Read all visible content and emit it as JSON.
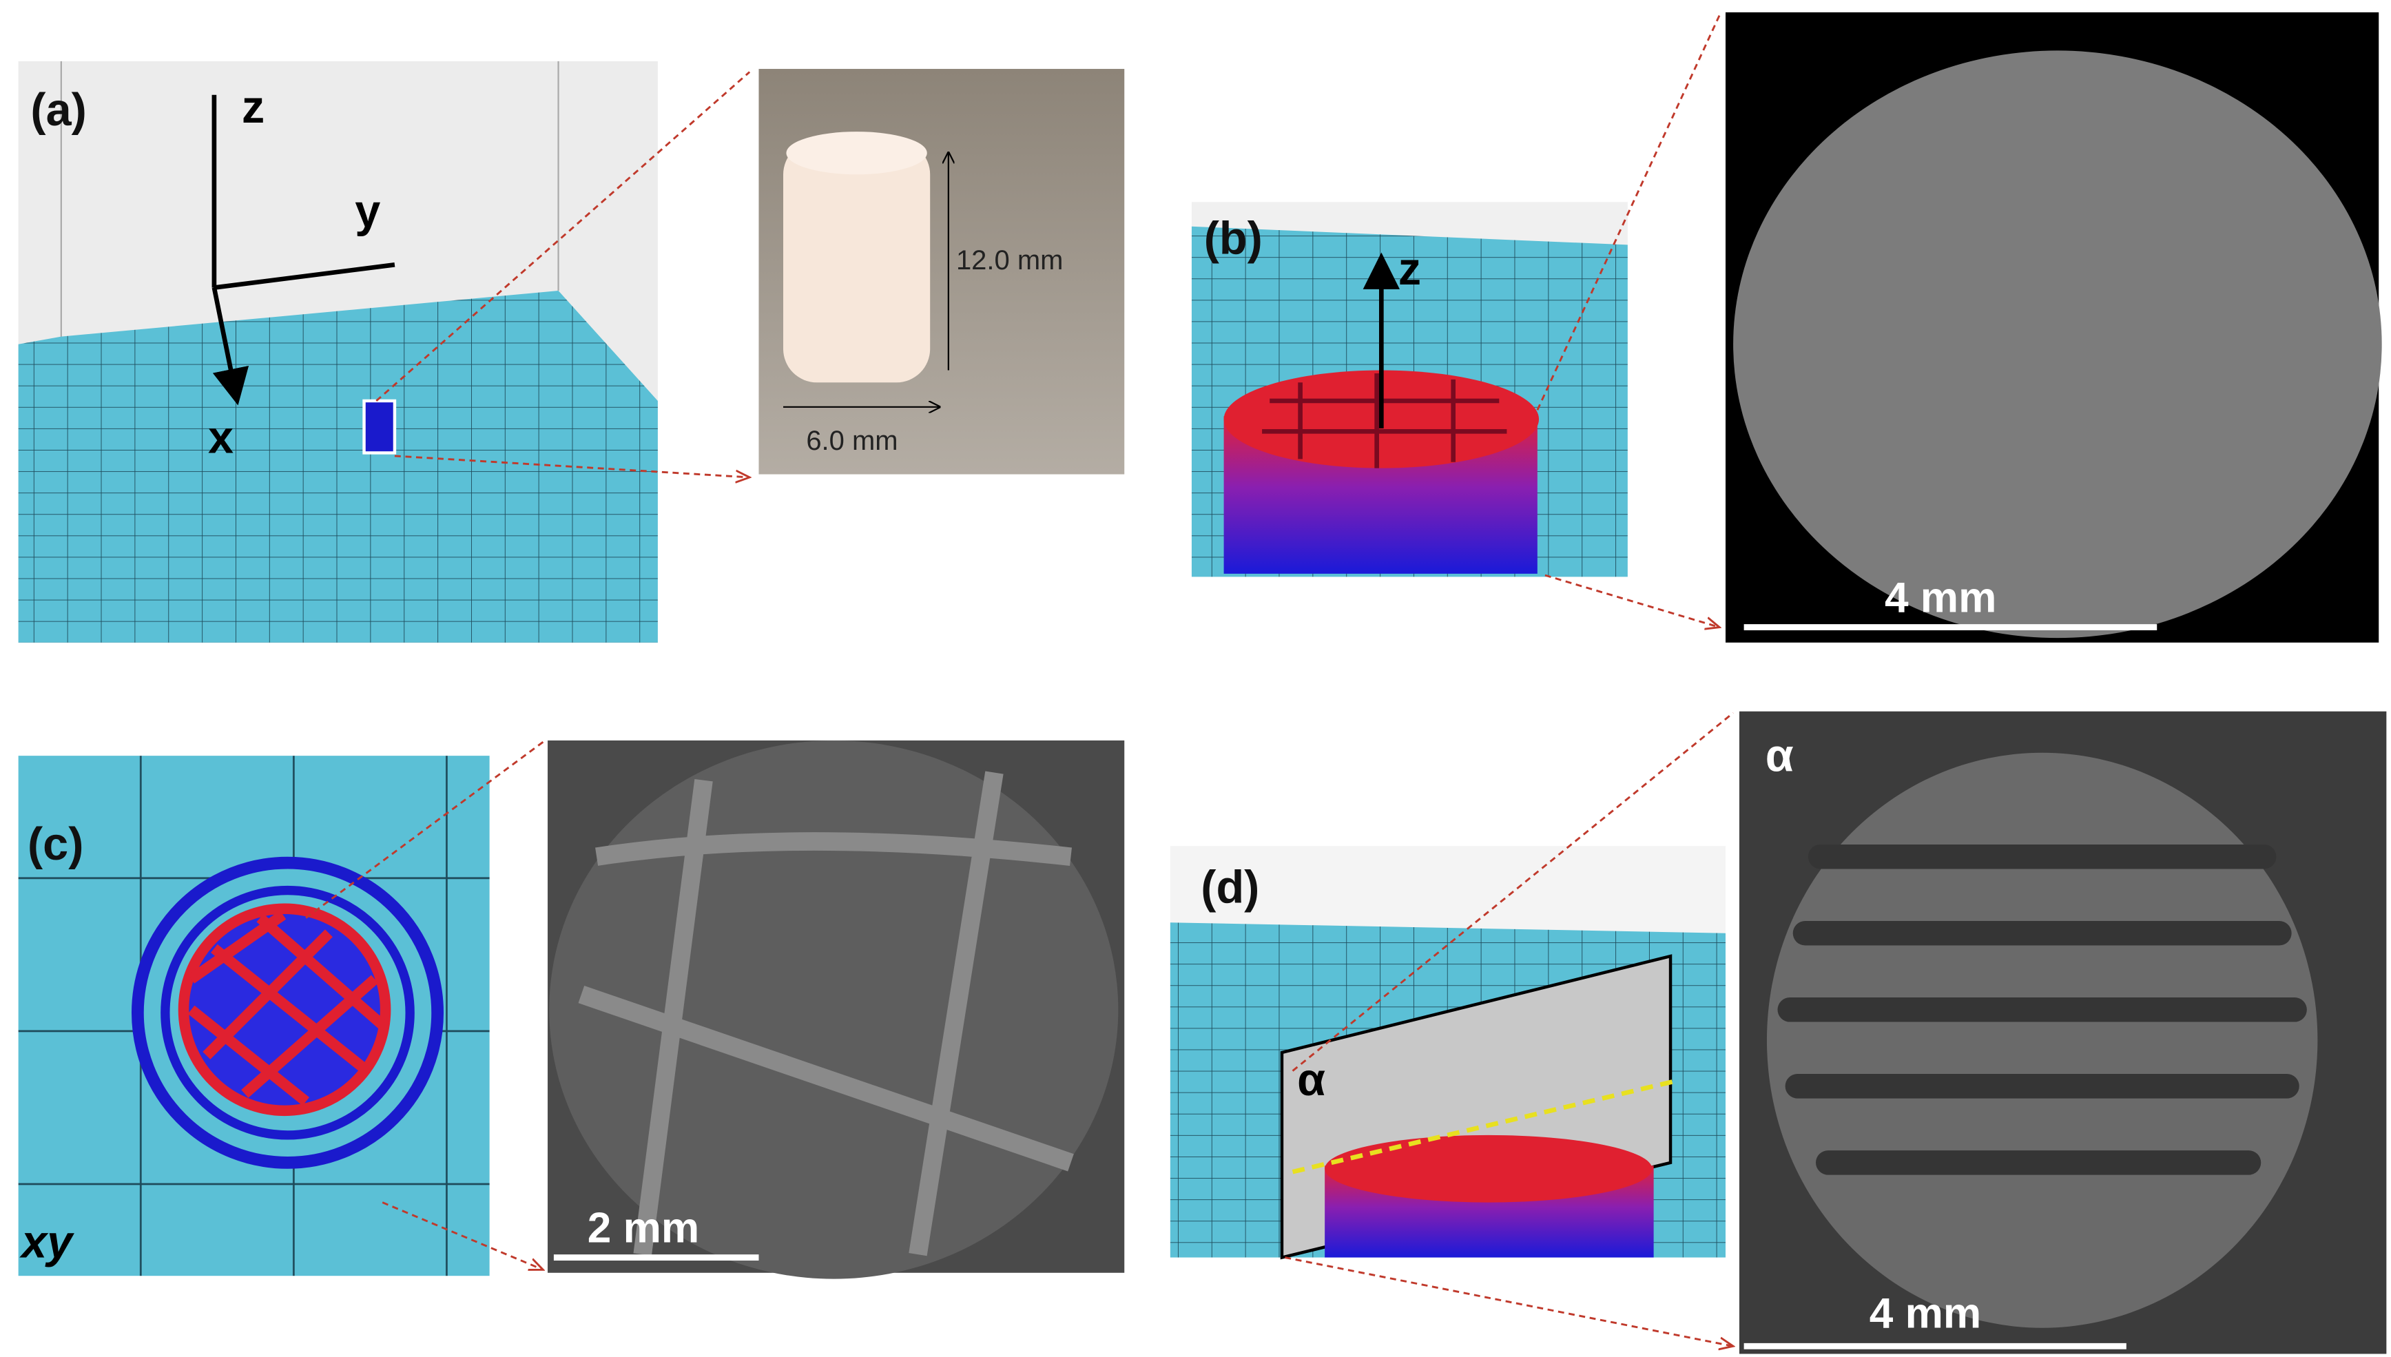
{
  "panels": {
    "a": {
      "label": "(a)",
      "axes": {
        "z": "z",
        "y": "y",
        "x": "x"
      },
      "height": "12.0 mm",
      "width": "6.0 mm"
    },
    "b": {
      "label": "(b)",
      "axis": "z",
      "scale_bar": "4 mm"
    },
    "c": {
      "label": "(c)",
      "plane": "xy",
      "scale_bar": "2 mm"
    },
    "d": {
      "label": "(d)",
      "plane": "α",
      "section_label": "α",
      "scale_bar": "4 mm"
    }
  }
}
